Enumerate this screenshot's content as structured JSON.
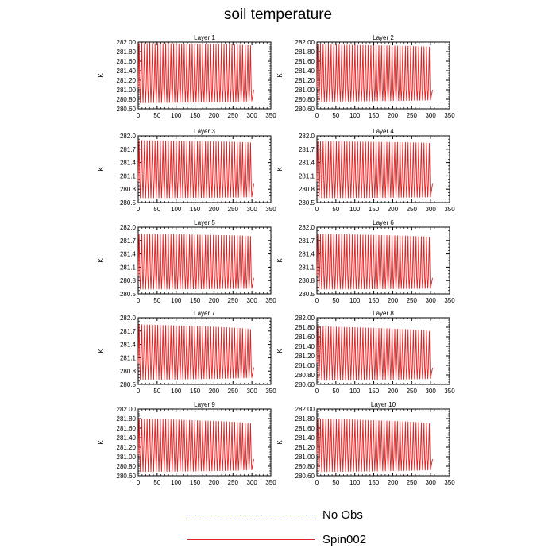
{
  "figure": {
    "title": "soil temperature"
  },
  "legend": [
    {
      "label": "No Obs",
      "style": "dashed",
      "color": "#3b3bb0"
    },
    {
      "label": "Spin002",
      "style": "solid",
      "color": "#e62020"
    }
  ],
  "chart_data": [
    {
      "type": "line",
      "title": "Layer 1",
      "ylabel": "K",
      "xlim": [
        0,
        350
      ],
      "ylim": [
        280.6,
        282.0
      ],
      "xticks": [
        "0",
        "50",
        "100",
        "150",
        "200",
        "250",
        "300",
        "350"
      ],
      "yticks": [
        "280.60",
        "280.80",
        "281.00",
        "281.20",
        "281.40",
        "281.60",
        "281.80",
        "282.00"
      ],
      "series": [
        {
          "color": "#e62020",
          "x_start": 0,
          "x_end": 305,
          "period": 7,
          "max_start": 281.98,
          "max_end": 281.93,
          "min_start": 280.72,
          "min_end": 280.76,
          "shoulder_start": 281.05,
          "shoulder_end": 281.0
        }
      ]
    },
    {
      "type": "line",
      "title": "Layer 2",
      "ylabel": "K",
      "xlim": [
        0,
        350
      ],
      "ylim": [
        280.6,
        282.0
      ],
      "xticks": [
        "0",
        "50",
        "100",
        "150",
        "200",
        "250",
        "300",
        "350"
      ],
      "yticks": [
        "280.60",
        "280.80",
        "281.00",
        "281.20",
        "281.40",
        "281.60",
        "281.80",
        "282.00"
      ],
      "series": [
        {
          "color": "#e62020",
          "x_start": 0,
          "x_end": 305,
          "period": 7,
          "max_start": 281.95,
          "max_end": 281.9,
          "min_start": 280.75,
          "min_end": 280.78,
          "shoulder_start": 281.05,
          "shoulder_end": 281.0
        }
      ]
    },
    {
      "type": "line",
      "title": "Layer 3",
      "ylabel": "K",
      "xlim": [
        0,
        350
      ],
      "ylim": [
        280.5,
        282.0
      ],
      "xticks": [
        "0",
        "50",
        "100",
        "150",
        "200",
        "250",
        "300",
        "350"
      ],
      "yticks": [
        "280.5",
        "280.8",
        "281.1",
        "281.4",
        "281.7",
        "282.0"
      ],
      "series": [
        {
          "color": "#e62020",
          "x_start": 0,
          "x_end": 305,
          "period": 7,
          "max_start": 281.9,
          "max_end": 281.85,
          "min_start": 280.6,
          "min_end": 280.62,
          "shoulder_start": 280.98,
          "shoulder_end": 280.92
        }
      ]
    },
    {
      "type": "line",
      "title": "Layer 4",
      "ylabel": "K",
      "xlim": [
        0,
        350
      ],
      "ylim": [
        280.5,
        282.0
      ],
      "xticks": [
        "0",
        "50",
        "100",
        "150",
        "200",
        "250",
        "300",
        "350"
      ],
      "yticks": [
        "280.5",
        "280.8",
        "281.1",
        "281.4",
        "281.7",
        "282.0"
      ],
      "series": [
        {
          "color": "#e62020",
          "x_start": 0,
          "x_end": 305,
          "period": 7,
          "max_start": 281.88,
          "max_end": 281.84,
          "min_start": 280.6,
          "min_end": 280.62,
          "shoulder_start": 280.98,
          "shoulder_end": 280.92
        }
      ]
    },
    {
      "type": "line",
      "title": "Layer 5",
      "ylabel": "K",
      "xlim": [
        0,
        350
      ],
      "ylim": [
        280.5,
        282.0
      ],
      "xticks": [
        "0",
        "50",
        "100",
        "150",
        "200",
        "250",
        "300",
        "350"
      ],
      "yticks": [
        "280.5",
        "280.8",
        "281.1",
        "281.4",
        "281.7",
        "282.0"
      ],
      "series": [
        {
          "color": "#e62020",
          "x_start": 0,
          "x_end": 305,
          "period": 7,
          "max_start": 281.85,
          "max_end": 281.8,
          "min_start": 280.6,
          "min_end": 280.62,
          "shoulder_start": 280.92,
          "shoulder_end": 280.86
        }
      ]
    },
    {
      "type": "line",
      "title": "Layer 6",
      "ylabel": "K",
      "xlim": [
        0,
        350
      ],
      "ylim": [
        280.5,
        282.0
      ],
      "xticks": [
        "0",
        "50",
        "100",
        "150",
        "200",
        "250",
        "300",
        "350"
      ],
      "yticks": [
        "280.5",
        "280.8",
        "281.1",
        "281.4",
        "281.7",
        "282.0"
      ],
      "series": [
        {
          "color": "#e62020",
          "x_start": 0,
          "x_end": 305,
          "period": 7,
          "max_start": 281.85,
          "max_end": 281.78,
          "min_start": 280.6,
          "min_end": 280.62,
          "shoulder_start": 280.92,
          "shoulder_end": 280.86
        }
      ]
    },
    {
      "type": "line",
      "title": "Layer 7",
      "ylabel": "K",
      "xlim": [
        0,
        350
      ],
      "ylim": [
        280.5,
        282.0
      ],
      "xticks": [
        "0",
        "50",
        "100",
        "150",
        "200",
        "250",
        "300",
        "350"
      ],
      "yticks": [
        "280.5",
        "280.8",
        "281.1",
        "281.4",
        "281.7",
        "282.0"
      ],
      "series": [
        {
          "color": "#e62020",
          "x_start": 0,
          "x_end": 305,
          "period": 7,
          "max_start": 281.85,
          "max_end": 281.74,
          "min_start": 280.6,
          "min_end": 280.65,
          "shoulder_start": 280.98,
          "shoulder_end": 280.88
        }
      ]
    },
    {
      "type": "line",
      "title": "Layer 8",
      "ylabel": "K",
      "xlim": [
        0,
        350
      ],
      "ylim": [
        280.6,
        282.0
      ],
      "xticks": [
        "0",
        "50",
        "100",
        "150",
        "200",
        "250",
        "300",
        "350"
      ],
      "yticks": [
        "280.60",
        "280.80",
        "281.00",
        "281.20",
        "281.40",
        "281.60",
        "281.80",
        "282.00"
      ],
      "series": [
        {
          "color": "#e62020",
          "x_start": 0,
          "x_end": 305,
          "period": 7,
          "max_start": 281.82,
          "max_end": 281.72,
          "min_start": 280.68,
          "min_end": 280.72,
          "shoulder_start": 281.05,
          "shoulder_end": 280.95
        }
      ]
    },
    {
      "type": "line",
      "title": "Layer 9",
      "ylabel": "K",
      "xlim": [
        0,
        350
      ],
      "ylim": [
        280.6,
        282.0
      ],
      "xticks": [
        "0",
        "50",
        "100",
        "150",
        "200",
        "250",
        "300",
        "350"
      ],
      "yticks": [
        "280.60",
        "280.80",
        "281.00",
        "281.20",
        "281.40",
        "281.60",
        "281.80",
        "282.00"
      ],
      "series": [
        {
          "color": "#e62020",
          "x_start": 0,
          "x_end": 305,
          "period": 7,
          "max_start": 281.8,
          "max_end": 281.7,
          "min_start": 280.68,
          "min_end": 280.72,
          "shoulder_start": 281.05,
          "shoulder_end": 280.95
        }
      ]
    },
    {
      "type": "line",
      "title": "Layer 10",
      "ylabel": "K",
      "xlim": [
        0,
        350
      ],
      "ylim": [
        280.6,
        282.0
      ],
      "xticks": [
        "0",
        "50",
        "100",
        "150",
        "200",
        "250",
        "300",
        "350"
      ],
      "yticks": [
        "280.60",
        "280.80",
        "281.00",
        "281.20",
        "281.40",
        "281.60",
        "281.80",
        "282.00"
      ],
      "series": [
        {
          "color": "#e62020",
          "x_start": 0,
          "x_end": 305,
          "period": 7,
          "max_start": 281.8,
          "max_end": 281.7,
          "min_start": 280.68,
          "min_end": 280.72,
          "shoulder_start": 281.05,
          "shoulder_end": 280.95
        }
      ]
    }
  ]
}
